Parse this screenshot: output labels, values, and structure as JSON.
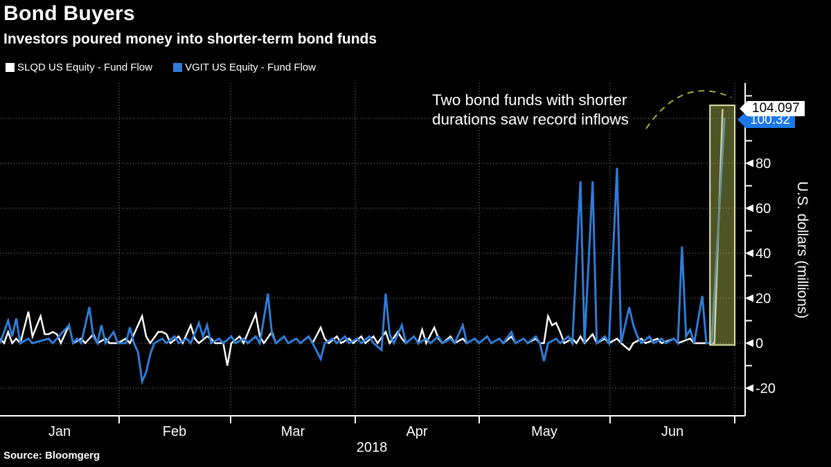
{
  "header": {
    "title": "Bond Buyers",
    "subtitle": "Investors poured money into shorter-term bond funds"
  },
  "legend": [
    {
      "label": "SLQD US Equity - Fund Flow",
      "color": "#ffffff"
    },
    {
      "label": "VGIT US Equity - Fund Flow",
      "color": "#2f7cd8"
    }
  ],
  "annotation": {
    "line1": "Two bond funds with shorter",
    "line2": "durations saw record inflows"
  },
  "value_labels": [
    {
      "value": "104.097",
      "bg": "#ffffff",
      "fg": "#000000"
    },
    {
      "value": "100.32",
      "bg": "#1b76e8",
      "fg": "#ffffff"
    }
  ],
  "source": "Source: Bloomgerg",
  "chart_data": {
    "type": "line",
    "title": "Bond Buyers",
    "subtitle": "Investors poured money into shorter-term bond funds",
    "xlabel": "2018",
    "ylabel": "U.S. dollars (millions)",
    "x_axis": {
      "months": [
        "Jan",
        "Feb",
        "Mar",
        "Apr",
        "May",
        "Jun"
      ],
      "year": "2018",
      "day_range": [
        0,
        181
      ]
    },
    "y_axis": {
      "label": "U.S. dollars (millions)",
      "major_ticks": [
        -20,
        0,
        20,
        40,
        60,
        80
      ],
      "minor_ticks": [
        -10,
        10,
        30,
        50,
        70,
        90,
        110
      ],
      "gridlines": [
        -20,
        0,
        20,
        40,
        60,
        80,
        100
      ],
      "ylim": [
        -27,
        116
      ]
    },
    "grid": "dotted",
    "legend_position": "top-left",
    "series": [
      {
        "name": "SLQD US Equity - Fund Flow",
        "color": "#ffffff",
        "last_value": 104.097,
        "points": [
          [
            0,
            2
          ],
          [
            1,
            0
          ],
          [
            2,
            5
          ],
          [
            3,
            0
          ],
          [
            4,
            2
          ],
          [
            5,
            0
          ],
          [
            7,
            14
          ],
          [
            8,
            3
          ],
          [
            10,
            12
          ],
          [
            11,
            4
          ],
          [
            12,
            4
          ],
          [
            13,
            5
          ],
          [
            14,
            4
          ],
          [
            15,
            0
          ],
          [
            17,
            8
          ],
          [
            18,
            0
          ],
          [
            20,
            2
          ],
          [
            21,
            0
          ],
          [
            23,
            4
          ],
          [
            24,
            0
          ],
          [
            26,
            2
          ],
          [
            27,
            0
          ],
          [
            29,
            0
          ],
          [
            31,
            2
          ],
          [
            32,
            0
          ],
          [
            35,
            12
          ],
          [
            36,
            3
          ],
          [
            37,
            0
          ],
          [
            39,
            5
          ],
          [
            40,
            5
          ],
          [
            41,
            4
          ],
          [
            42,
            0
          ],
          [
            44,
            3
          ],
          [
            45,
            0
          ],
          [
            47,
            8
          ],
          [
            48,
            2
          ],
          [
            49,
            0
          ],
          [
            51,
            3
          ],
          [
            52,
            2
          ],
          [
            53,
            0
          ],
          [
            55,
            0
          ],
          [
            56,
            -10
          ],
          [
            57,
            0
          ],
          [
            59,
            3
          ],
          [
            60,
            0
          ],
          [
            63,
            13
          ],
          [
            64,
            3
          ],
          [
            65,
            0
          ],
          [
            67,
            5
          ],
          [
            68,
            0
          ],
          [
            70,
            3
          ],
          [
            71,
            0
          ],
          [
            73,
            2
          ],
          [
            74,
            0
          ],
          [
            76,
            3
          ],
          [
            77,
            0
          ],
          [
            79,
            7
          ],
          [
            80,
            2
          ],
          [
            81,
            0
          ],
          [
            83,
            3
          ],
          [
            84,
            0
          ],
          [
            86,
            2
          ],
          [
            87,
            0
          ],
          [
            89,
            3
          ],
          [
            90,
            0
          ],
          [
            92,
            3
          ],
          [
            93,
            0
          ],
          [
            95,
            5
          ],
          [
            96,
            0
          ],
          [
            98,
            5
          ],
          [
            99,
            2
          ],
          [
            100,
            0
          ],
          [
            102,
            3
          ],
          [
            103,
            0
          ],
          [
            104,
            6
          ],
          [
            105,
            0
          ],
          [
            107,
            7
          ],
          [
            108,
            2
          ],
          [
            109,
            0
          ],
          [
            111,
            3
          ],
          [
            112,
            0
          ],
          [
            114,
            2
          ],
          [
            115,
            0
          ],
          [
            117,
            2
          ],
          [
            118,
            0
          ],
          [
            120,
            3
          ],
          [
            121,
            0
          ],
          [
            123,
            2
          ],
          [
            124,
            0
          ],
          [
            126,
            3
          ],
          [
            127,
            0
          ],
          [
            129,
            2
          ],
          [
            130,
            0
          ],
          [
            132,
            2
          ],
          [
            133,
            0
          ],
          [
            134,
            0
          ],
          [
            135,
            12
          ],
          [
            136,
            8
          ],
          [
            137,
            9
          ],
          [
            138,
            5
          ],
          [
            139,
            0
          ],
          [
            141,
            2
          ],
          [
            142,
            0
          ],
          [
            143,
            3
          ],
          [
            144,
            0
          ],
          [
            146,
            4
          ],
          [
            147,
            0
          ],
          [
            149,
            2
          ],
          [
            150,
            0
          ],
          [
            152,
            2
          ],
          [
            153,
            0
          ],
          [
            155,
            -3
          ],
          [
            156,
            0
          ],
          [
            158,
            2
          ],
          [
            159,
            0
          ],
          [
            162,
            2
          ],
          [
            163,
            0
          ],
          [
            166,
            2
          ],
          [
            167,
            0
          ],
          [
            170,
            2
          ],
          [
            171,
            0
          ],
          [
            176,
            0
          ],
          [
            178,
            104.097
          ]
        ]
      },
      {
        "name": "VGIT US Equity - Fund Flow",
        "color": "#2f7cd8",
        "last_value": 100.32,
        "points": [
          [
            0,
            0
          ],
          [
            2,
            10
          ],
          [
            3,
            3
          ],
          [
            4,
            11
          ],
          [
            5,
            0
          ],
          [
            7,
            2
          ],
          [
            8,
            0
          ],
          [
            12,
            2
          ],
          [
            13,
            0
          ],
          [
            17,
            8
          ],
          [
            18,
            0
          ],
          [
            19,
            2
          ],
          [
            20,
            0
          ],
          [
            22,
            16
          ],
          [
            23,
            3
          ],
          [
            24,
            0
          ],
          [
            25,
            8
          ],
          [
            26,
            0
          ],
          [
            28,
            5
          ],
          [
            29,
            0
          ],
          [
            31,
            0
          ],
          [
            32,
            7
          ],
          [
            33,
            0
          ],
          [
            34,
            -4
          ],
          [
            35,
            -17
          ],
          [
            36,
            -13
          ],
          [
            37,
            -5
          ],
          [
            38,
            0
          ],
          [
            40,
            2
          ],
          [
            41,
            0
          ],
          [
            43,
            3
          ],
          [
            44,
            0
          ],
          [
            46,
            2
          ],
          [
            47,
            0
          ],
          [
            49,
            9
          ],
          [
            50,
            3
          ],
          [
            51,
            8
          ],
          [
            52,
            0
          ],
          [
            54,
            2
          ],
          [
            55,
            0
          ],
          [
            57,
            3
          ],
          [
            58,
            0
          ],
          [
            60,
            2
          ],
          [
            61,
            0
          ],
          [
            63,
            3
          ],
          [
            64,
            0
          ],
          [
            66,
            22
          ],
          [
            67,
            4
          ],
          [
            68,
            0
          ],
          [
            70,
            3
          ],
          [
            71,
            0
          ],
          [
            73,
            2
          ],
          [
            74,
            0
          ],
          [
            76,
            3
          ],
          [
            77,
            0
          ],
          [
            79,
            -7
          ],
          [
            80,
            0
          ],
          [
            82,
            2
          ],
          [
            83,
            0
          ],
          [
            85,
            3
          ],
          [
            86,
            0
          ],
          [
            88,
            2
          ],
          [
            89,
            0
          ],
          [
            91,
            3
          ],
          [
            92,
            0
          ],
          [
            94,
            -3
          ],
          [
            95,
            22
          ],
          [
            96,
            4
          ],
          [
            97,
            0
          ],
          [
            99,
            8
          ],
          [
            100,
            0
          ],
          [
            102,
            3
          ],
          [
            103,
            0
          ],
          [
            105,
            2
          ],
          [
            106,
            0
          ],
          [
            108,
            3
          ],
          [
            109,
            0
          ],
          [
            111,
            2
          ],
          [
            112,
            0
          ],
          [
            114,
            8
          ],
          [
            115,
            0
          ],
          [
            117,
            2
          ],
          [
            118,
            0
          ],
          [
            120,
            3
          ],
          [
            121,
            0
          ],
          [
            123,
            2
          ],
          [
            124,
            0
          ],
          [
            126,
            5
          ],
          [
            127,
            0
          ],
          [
            129,
            2
          ],
          [
            130,
            0
          ],
          [
            132,
            3
          ],
          [
            133,
            0
          ],
          [
            134,
            -8
          ],
          [
            135,
            0
          ],
          [
            137,
            2
          ],
          [
            138,
            0
          ],
          [
            140,
            3
          ],
          [
            141,
            0
          ],
          [
            143,
            72
          ],
          [
            144,
            0
          ],
          [
            146,
            72
          ],
          [
            147,
            0
          ],
          [
            149,
            3
          ],
          [
            150,
            0
          ],
          [
            152,
            78
          ],
          [
            153,
            0
          ],
          [
            155,
            16
          ],
          [
            156,
            8
          ],
          [
            157,
            3
          ],
          [
            158,
            0
          ],
          [
            160,
            3
          ],
          [
            161,
            0
          ],
          [
            163,
            2
          ],
          [
            164,
            0
          ],
          [
            166,
            2
          ],
          [
            167,
            0
          ],
          [
            168,
            43
          ],
          [
            169,
            3
          ],
          [
            170,
            6
          ],
          [
            171,
            0
          ],
          [
            173,
            21
          ],
          [
            174,
            0
          ],
          [
            175.3,
            0
          ],
          [
            178.5,
            100.32
          ]
        ]
      }
    ],
    "highlight": {
      "day_start": 174.9,
      "day_end": 181,
      "value_top": 105.8,
      "value_bottom": -0.8,
      "fill": "rgba(158,168,78,0.5)",
      "border": "#dce8a8"
    },
    "annotation_arrow_color": "#9db33c",
    "grid_color": "#bbbbbb",
    "axis_color": "#ffffff"
  }
}
